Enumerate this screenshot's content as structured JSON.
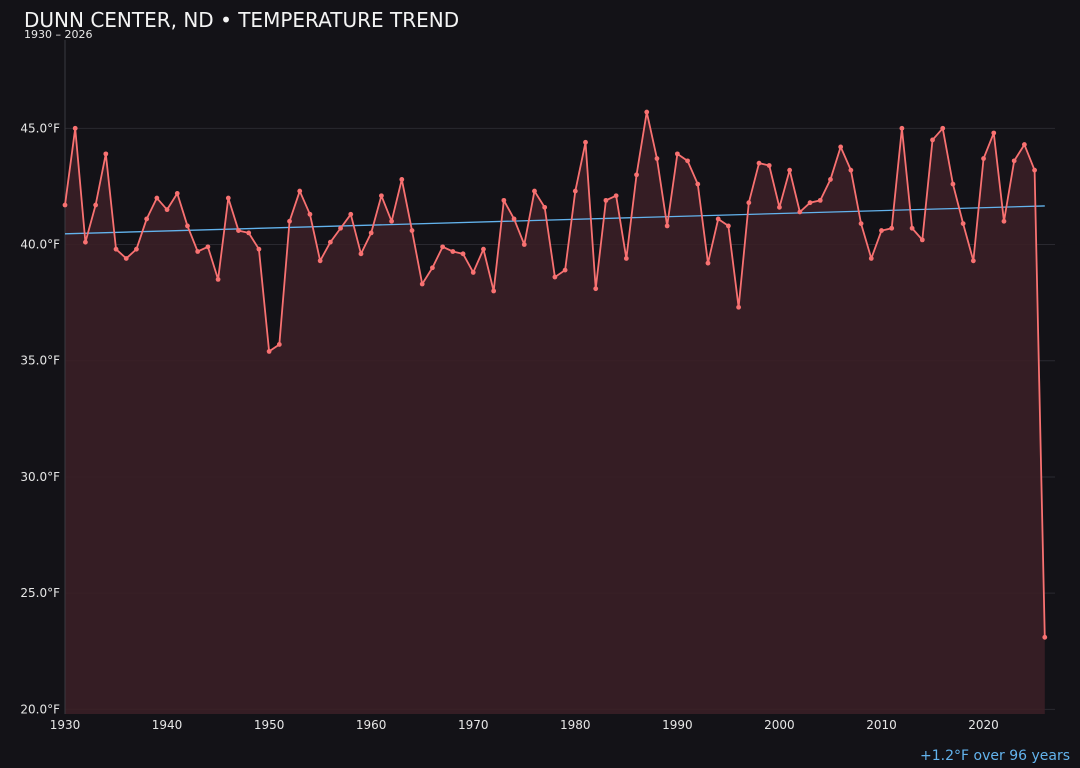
{
  "chart_data": {
    "type": "line",
    "title": "DUNN CENTER, ND • TEMPERATURE TREND",
    "subtitle": "1930 – 2026",
    "annotation": "+1.2°F over 96 years",
    "xlabel": "",
    "ylabel": "",
    "xlim": [
      1930,
      2027
    ],
    "ylim": [
      19.8,
      48.8
    ],
    "x_ticks": [
      1930,
      1940,
      1950,
      1960,
      1970,
      1980,
      1990,
      2000,
      2010,
      2020
    ],
    "x_tick_labels": [
      "1930",
      "1940",
      "1950",
      "1960",
      "1970",
      "1980",
      "1990",
      "2000",
      "2010",
      "2020"
    ],
    "y_ticks": [
      20,
      25,
      30,
      35,
      40,
      45
    ],
    "y_tick_labels": [
      "20.0°F",
      "25.0°F",
      "30.0°F",
      "35.0°F",
      "40.0°F",
      "45.0°F"
    ],
    "grid": true,
    "colors": {
      "line": "#f87171",
      "area": "#3a1f26",
      "trend": "#63b3ed",
      "background": "#131217",
      "grid": "#2a2930"
    },
    "series": [
      {
        "x": [
          1930,
          1931,
          1932,
          1933,
          1934,
          1935,
          1936,
          1937,
          1938,
          1939,
          1940,
          1941,
          1942,
          1943,
          1944,
          1945,
          1946,
          1947,
          1948,
          1949,
          1950,
          1951,
          1952,
          1953,
          1954,
          1955,
          1956,
          1957,
          1958,
          1959,
          1960,
          1961,
          1962,
          1963,
          1964,
          1965,
          1966,
          1967,
          1968,
          1969,
          1970,
          1971,
          1972,
          1973,
          1974,
          1975,
          1976,
          1977,
          1978,
          1979,
          1980,
          1981,
          1982,
          1983,
          1984,
          1985,
          1986,
          1987,
          1988,
          1989,
          1990,
          1991,
          1992,
          1993,
          1994,
          1995,
          1996,
          1997,
          1998,
          1999,
          2000,
          2001,
          2002,
          2003,
          2004,
          2005,
          2006,
          2007,
          2008,
          2009,
          2010,
          2011,
          2012,
          2013,
          2014,
          2015,
          2016,
          2017,
          2018,
          2019,
          2020,
          2021,
          2022,
          2023,
          2024,
          2025,
          2026
        ],
        "values": [
          41.7,
          45.0,
          40.1,
          41.7,
          43.9,
          39.8,
          39.4,
          39.8,
          41.1,
          42.0,
          41.5,
          42.2,
          40.8,
          39.7,
          39.9,
          38.5,
          42.0,
          40.6,
          40.5,
          39.8,
          35.4,
          35.7,
          41.0,
          42.3,
          41.3,
          39.3,
          40.1,
          40.7,
          41.3,
          39.6,
          40.5,
          42.1,
          41.0,
          42.8,
          40.6,
          38.3,
          39.0,
          39.9,
          39.7,
          39.6,
          38.8,
          39.8,
          38.0,
          41.9,
          41.1,
          40.0,
          42.3,
          41.6,
          38.6,
          38.9,
          42.3,
          44.4,
          38.1,
          41.9,
          42.1,
          39.4,
          43.0,
          45.7,
          43.7,
          40.8,
          43.9,
          43.6,
          42.6,
          39.2,
          41.1,
          40.8,
          37.3,
          41.8,
          43.5,
          43.4,
          41.6,
          43.2,
          41.4,
          41.8,
          41.9,
          42.8,
          44.2,
          43.2,
          40.9,
          39.4,
          40.6,
          40.7,
          45.0,
          40.7,
          40.2,
          44.5,
          45.0,
          42.6,
          40.9,
          39.3,
          43.7,
          44.8,
          41.0,
          43.6,
          44.3,
          43.2,
          23.1
        ]
      }
    ],
    "trend": {
      "x": [
        1930,
        2026
      ],
      "values": [
        40.46,
        41.66
      ]
    }
  }
}
